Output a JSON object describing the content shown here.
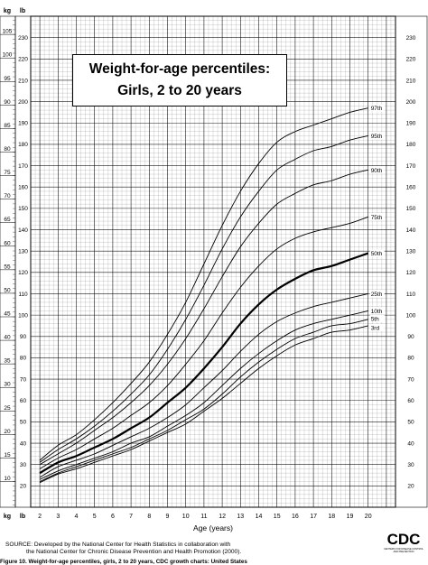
{
  "chart_data": {
    "type": "line",
    "title": "Weight-for-age percentiles:",
    "subtitle": "Girls, 2 to 20 years",
    "xlabel": "Age (years)",
    "y_unit_left": "kg",
    "y_unit_right": "lb",
    "x_ticks": [
      2,
      3,
      4,
      5,
      6,
      7,
      8,
      9,
      10,
      11,
      12,
      13,
      14,
      15,
      16,
      17,
      18,
      19,
      20
    ],
    "xlim": [
      1.5,
      21.5
    ],
    "ylim_lb": [
      10,
      240
    ],
    "kg_ticks": [
      10,
      15,
      20,
      25,
      30,
      35,
      40,
      45,
      50,
      55,
      60,
      65,
      70,
      75,
      80,
      85,
      90,
      95,
      100,
      105
    ],
    "lb_ticks": [
      20,
      30,
      40,
      50,
      60,
      70,
      80,
      90,
      100,
      110,
      120,
      130,
      140,
      150,
      160,
      170,
      180,
      190,
      200,
      210,
      220,
      230
    ],
    "lb_ticks_right": [
      20,
      30,
      40,
      50,
      60,
      70,
      80,
      90,
      100,
      110,
      120,
      130,
      140,
      150,
      160,
      170,
      180,
      190,
      200,
      210,
      220,
      230
    ],
    "x": [
      2,
      3,
      4,
      5,
      6,
      7,
      8,
      9,
      10,
      11,
      12,
      13,
      14,
      15,
      16,
      17,
      18,
      19,
      20
    ],
    "series": [
      {
        "name": "97th",
        "values": [
          32,
          39,
          44,
          51,
          59,
          68,
          78,
          91,
          106,
          124,
          142,
          158,
          171,
          181,
          186,
          189,
          192,
          195,
          197
        ]
      },
      {
        "name": "95th",
        "values": [
          31,
          37,
          42,
          48,
          55,
          63,
          72,
          84,
          98,
          114,
          131,
          146,
          158,
          168,
          173,
          177,
          179,
          182,
          184
        ]
      },
      {
        "name": "90th",
        "values": [
          30,
          35,
          40,
          46,
          52,
          59,
          67,
          77,
          89,
          103,
          118,
          132,
          143,
          152,
          157,
          161,
          163,
          166,
          168
        ]
      },
      {
        "name": "75th",
        "values": [
          28,
          33,
          37,
          42,
          47,
          53,
          59,
          67,
          77,
          88,
          101,
          113,
          123,
          131,
          136,
          139,
          141,
          143,
          146
        ]
      },
      {
        "name": "50th",
        "values": [
          26,
          31,
          34,
          38,
          42,
          47,
          52,
          59,
          66,
          75,
          85,
          96,
          105,
          112,
          117,
          121,
          123,
          126,
          129
        ]
      },
      {
        "name": "25th",
        "values": [
          24,
          29,
          32,
          35,
          39,
          43,
          47,
          52,
          58,
          66,
          74,
          83,
          91,
          97,
          101,
          104,
          106,
          108,
          110
        ]
      },
      {
        "name": "10th",
        "values": [
          23,
          27,
          30,
          33,
          36,
          40,
          43,
          48,
          53,
          59,
          67,
          75,
          82,
          88,
          93,
          96,
          98,
          100,
          102
        ]
      },
      {
        "name": "5th",
        "values": [
          22,
          26,
          29,
          32,
          35,
          38,
          42,
          46,
          51,
          56,
          63,
          71,
          78,
          84,
          89,
          92,
          95,
          96,
          98
        ]
      },
      {
        "name": "3rd",
        "values": [
          21.5,
          25.5,
          28,
          31,
          34,
          37,
          41,
          45,
          49,
          55,
          61,
          68,
          75,
          81,
          86,
          89,
          92,
          93,
          95
        ]
      }
    ],
    "bold_series": "50th",
    "grid": true
  },
  "source_text": "SOURCE: Developed by the National Center for Health Statistics in collaboration with",
  "source_text2": "the National Center for Chronic Disease Prevention and Health Promotion (2000).",
  "caption": "Figure 10. Weight-for-age percentiles, girls, 2 to 20 years, CDC growth charts: United States",
  "logo_text": "CDC",
  "logo_subtext": "CENTERS FOR DISEASE CONTROL AND PREVENTION"
}
